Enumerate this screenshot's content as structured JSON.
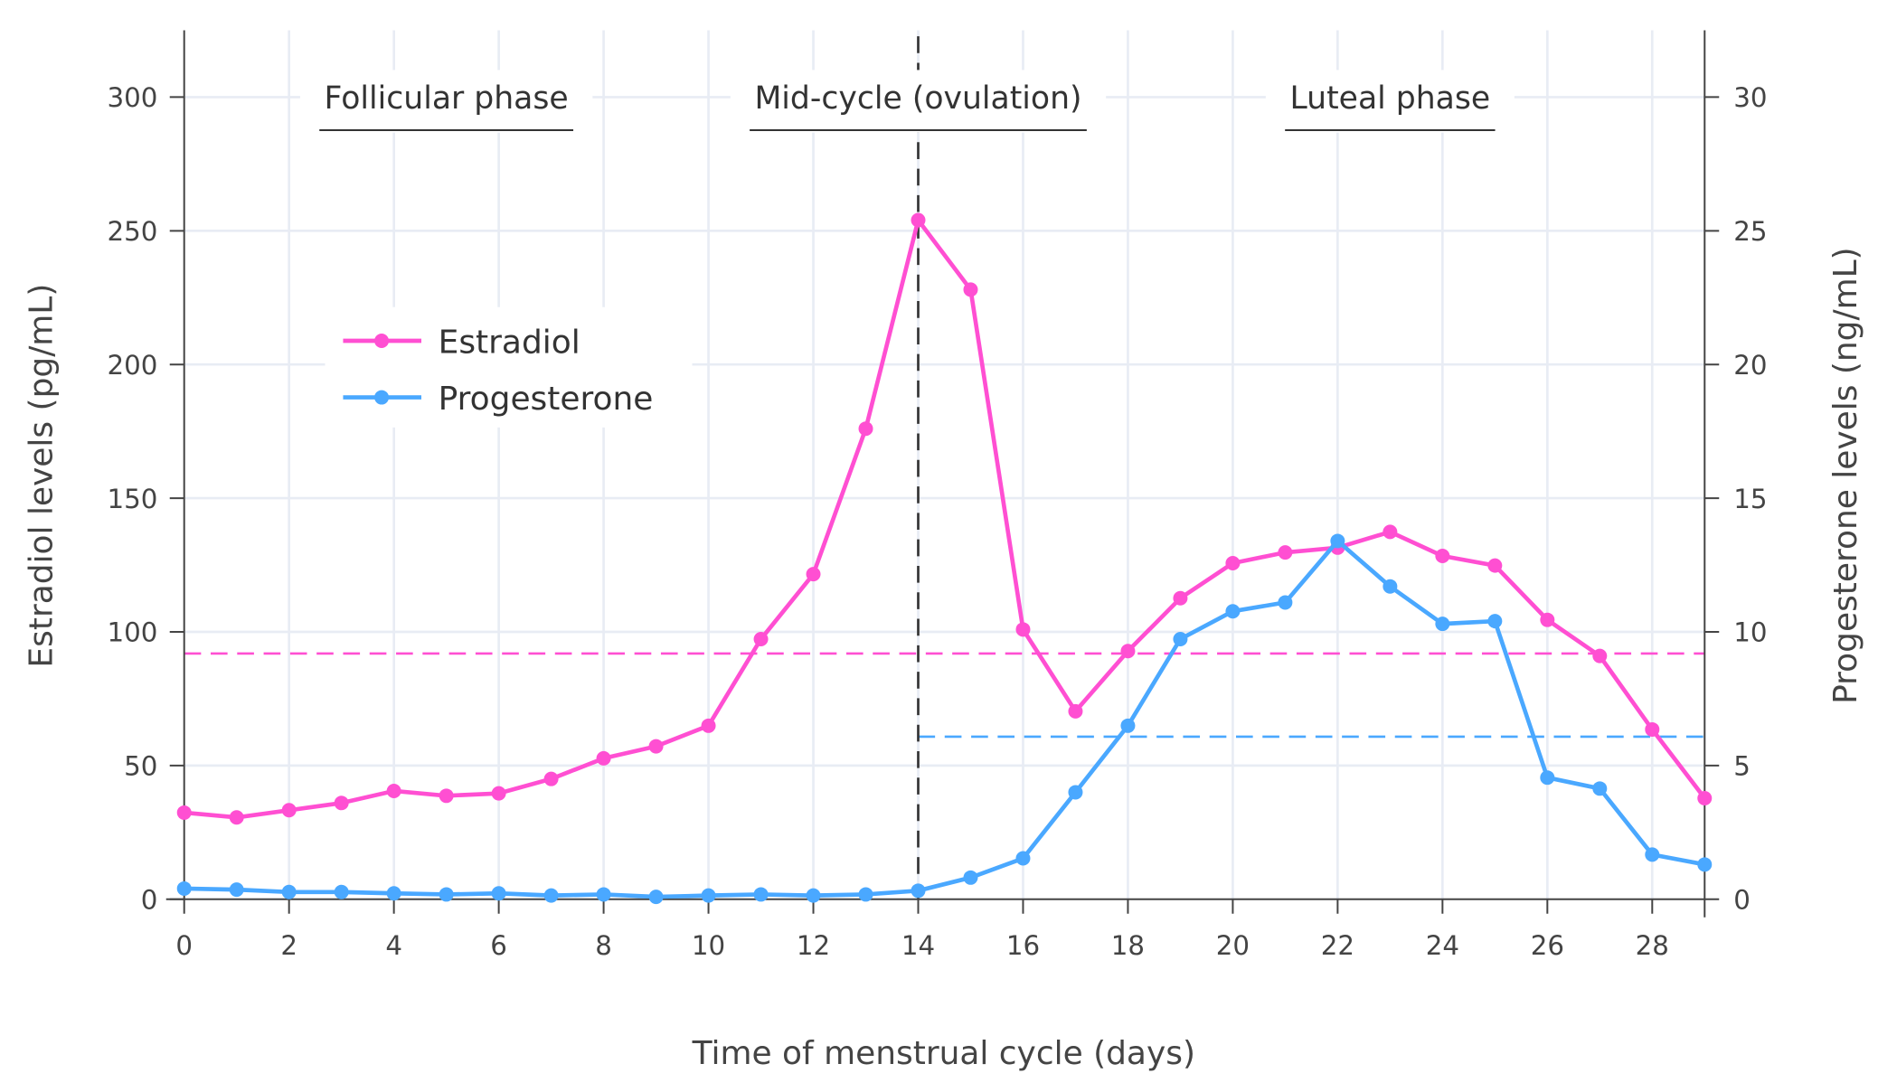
{
  "chart_data": {
    "type": "line",
    "xlabel": "Time of menstrual cycle (days)",
    "ylabel_left": "Estradiol levels (pg/mL)",
    "ylabel_right": "Progesterone levels (ng/mL)",
    "xlim": [
      0,
      29
    ],
    "ylim_left": [
      0,
      325
    ],
    "ylim_right": [
      0,
      32.5
    ],
    "x_ticks": [
      0,
      2,
      4,
      6,
      8,
      10,
      12,
      14,
      16,
      18,
      20,
      22,
      24,
      26,
      28
    ],
    "y_ticks_left": [
      0,
      50,
      100,
      150,
      200,
      250,
      300
    ],
    "y_ticks_right": [
      0,
      5,
      10,
      15,
      20,
      25,
      30
    ],
    "grid": true,
    "legend_position": "upper-left",
    "x": [
      0,
      1,
      2,
      3,
      4,
      5,
      6,
      7,
      8,
      9,
      10,
      11,
      12,
      13,
      14,
      15,
      16,
      17,
      18,
      19,
      20,
      21,
      22,
      23,
      24,
      25,
      26,
      27,
      28,
      29
    ],
    "series": [
      {
        "name": "Estradiol",
        "axis": "left",
        "color": "#ff4fd2",
        "values": [
          32.4,
          30.6,
          33.3,
          36,
          40.5,
          38.7,
          39.6,
          45,
          52.7,
          57.2,
          64.9,
          97.3,
          121.6,
          176,
          254,
          228,
          100.9,
          70.3,
          92.8,
          112.6,
          125.7,
          129.7,
          131.5,
          137.4,
          128.4,
          124.8,
          104.5,
          91,
          63.5,
          37.8
        ]
      },
      {
        "name": "Progesterone",
        "axis": "right",
        "color": "#4aa8ff",
        "values": [
          0.4,
          0.36,
          0.27,
          0.27,
          0.22,
          0.18,
          0.22,
          0.14,
          0.18,
          0.09,
          0.14,
          0.18,
          0.14,
          0.18,
          0.32,
          0.81,
          1.53,
          4.0,
          6.49,
          9.73,
          10.77,
          11.1,
          13.4,
          11.7,
          10.3,
          10.4,
          4.55,
          4.14,
          1.67,
          1.3
        ]
      }
    ],
    "reference_lines": [
      {
        "axis": "left",
        "value": 91.9,
        "x_range": [
          0,
          29
        ],
        "color": "#ff4fd2",
        "style": "dashed"
      },
      {
        "axis": "right",
        "value": 6.08,
        "x_range": [
          14,
          29
        ],
        "color": "#4aa8ff",
        "style": "dashed"
      },
      {
        "orientation": "vertical",
        "x": 14,
        "color": "#333333",
        "style": "dashed"
      }
    ],
    "annotations": [
      {
        "text": "Follicular phase",
        "x": 5
      },
      {
        "text": "Mid-cycle (ovulation)",
        "x": 14
      },
      {
        "text": "Luteal phase",
        "x": 23
      }
    ]
  }
}
